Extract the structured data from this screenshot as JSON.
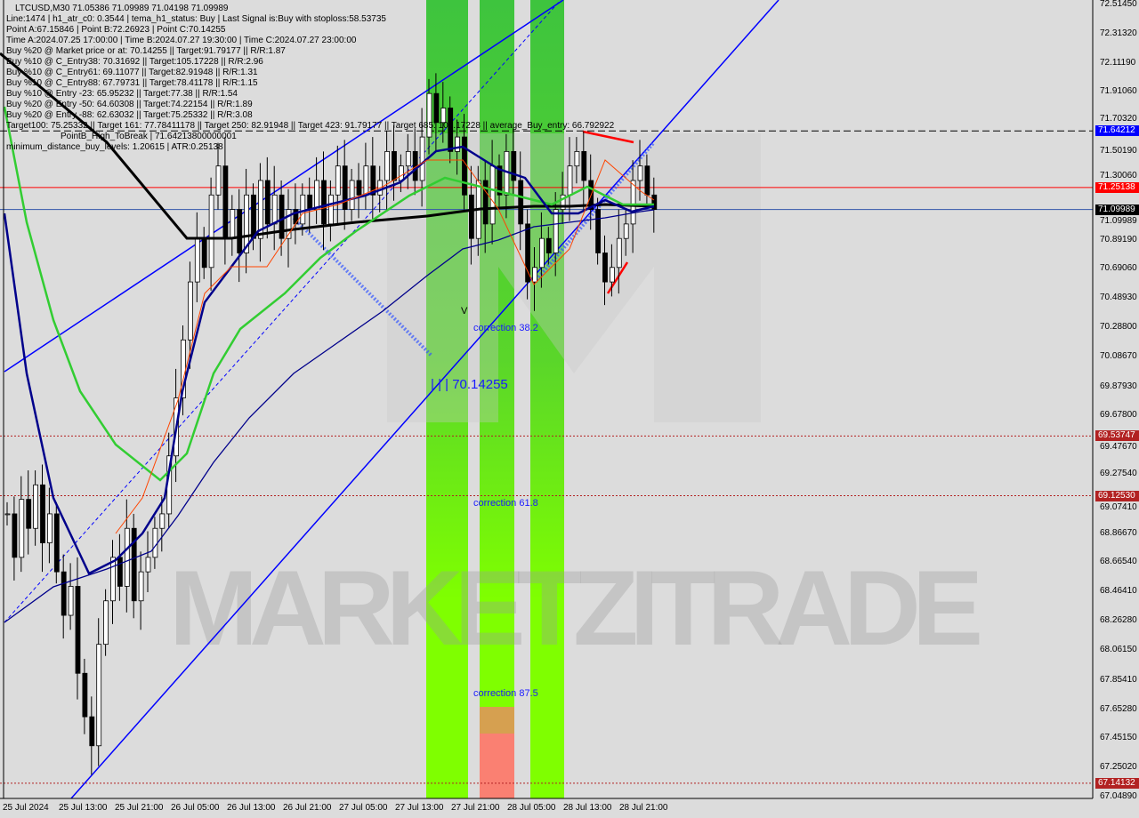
{
  "header": {
    "title": "LTCUSD,M30  71.05386 71.09989 71.04198 71.09989",
    "lines": [
      "Line:1474 | h1_atr_c0: 0.3544 | tema_h1_status: Buy | Last Signal is:Buy with stoploss:58.53735",
      "Point A:67.15846 | Point B:72.26923 | Point C:70.14255",
      "Time A:2024.07.25 17:00:00 | Time B:2024.07.27 19:30:00 | Time C:2024.07.27 23:00:00",
      "Buy %20 @ Market price or at: 70.14255 || Target:91.79177 || R/R:1.87",
      "Buy %10 @ C_Entry38: 70.31692 || Target:105.17228 || R/R:2.96",
      "Buy %10 @ C_Entry61: 69.11077 || Target:82.91948 || R/R:1.31",
      "Buy %10 @ C_Entry88: 67.79731 || Target:78.41178 || R/R:1.15",
      "Buy %10 @ Entry -23: 65.95232 || Target:77.38 || R/R:1.54",
      "Buy %20 @ Entry -50: 64.60308 || Target:74.22154 || R/R:1.89",
      "Buy %20 @ Entry -88: 62.63032 || Target:75.25332 || R/R:3.08",
      "Target100: 75.25332 || Target 161: 77.78411178 || Target 250: 82.91948 || Target 423: 91.79177 || Target 685: 105.17228 || average_Buy_entry: 66.792922",
      "minimum_distance_buy_levels: 1.20615 | ATR:0.25138"
    ],
    "overlay": "PointB_High_ToBreak | 71.64213800000001"
  },
  "annotations": {
    "corr38": "correction 38.2",
    "corr61": "correction 61.8",
    "corr87": "correction 87.5",
    "pointC": "| | | 70.14255",
    "v_mark": "V"
  },
  "watermark": "MARKETZITRADE",
  "colors": {
    "bull_zone": "#3ec43e",
    "bull_zone_light": "#7fff00",
    "bear_zone": "#fa8072",
    "channel": "#0000ff",
    "ma_long": "#000000",
    "ma_green": "#32cd32",
    "ma_navy": "#00008b",
    "sl_line": "#ff0000"
  },
  "chart_data": {
    "type": "candlestick",
    "symbol": "LTCUSD",
    "timeframe": "M30",
    "ylim": [
      67.0489,
      72.5145
    ],
    "y_ticks": [
      "72.51450",
      "72.31320",
      "72.11190",
      "71.91060",
      "71.70320",
      "71.50190",
      "71.30060",
      "71.09989",
      "70.89190",
      "70.69060",
      "70.48930",
      "70.28800",
      "70.08670",
      "69.87930",
      "69.67800",
      "69.47670",
      "69.27540",
      "69.07410",
      "68.86670",
      "68.66540",
      "68.46410",
      "68.26280",
      "68.06150",
      "67.85410",
      "67.65280",
      "67.45150",
      "67.25020",
      "67.04890"
    ],
    "x_ticks": [
      "25 Jul 2024",
      "25 Jul 13:00",
      "25 Jul 21:00",
      "26 Jul 05:00",
      "26 Jul 13:00",
      "26 Jul 21:00",
      "27 Jul 05:00",
      "27 Jul 13:00",
      "27 Jul 21:00",
      "28 Jul 05:00",
      "28 Jul 13:00",
      "28 Jul 21:00"
    ],
    "price_levels": [
      {
        "value": 71.64212,
        "label": "71.64212",
        "color": "#0000ff",
        "style": "dashed"
      },
      {
        "value": 71.25138,
        "label": "71.25138",
        "color": "#ff0000",
        "style": "solid"
      },
      {
        "value": 71.09989,
        "label": "71.09989",
        "color": "#000000",
        "style": "solid"
      },
      {
        "value": 69.53747,
        "label": "69.53747",
        "color": "#b22222",
        "style": "dotted"
      },
      {
        "value": 69.1253,
        "label": "69.12530",
        "color": "#b22222",
        "style": "dotted"
      },
      {
        "value": 67.14132,
        "label": "67.14132",
        "color": "#b22222",
        "style": "dotted"
      }
    ],
    "closes_approx": [
      69.0,
      68.7,
      69.1,
      68.9,
      69.2,
      68.8,
      69.0,
      68.6,
      68.3,
      68.5,
      67.9,
      67.6,
      67.4,
      68.1,
      68.4,
      68.7,
      68.5,
      68.9,
      68.4,
      68.6,
      68.7,
      68.9,
      69.0,
      69.4,
      69.8,
      70.2,
      70.6,
      70.9,
      70.7,
      71.2,
      71.4,
      70.9,
      71.1,
      70.8,
      71.2,
      70.9,
      71.3,
      71.0,
      71.2,
      70.9,
      71.1,
      71.0,
      71.2,
      71.1,
      71.3,
      71.0,
      71.2,
      71.4,
      71.1,
      71.3,
      71.2,
      71.4,
      71.2,
      71.3,
      71.5,
      71.3,
      71.4,
      71.5,
      71.3,
      71.6,
      71.9,
      71.7,
      71.8,
      71.5,
      71.6,
      71.2,
      70.9,
      71.3,
      71.0,
      71.4,
      71.2,
      71.5,
      71.3,
      71.0,
      70.6,
      70.7,
      70.9,
      70.8,
      71.1,
      71.2,
      71.4,
      71.5,
      71.3,
      71.1,
      70.8,
      70.6,
      70.7,
      70.9,
      71.0,
      71.3,
      71.4,
      71.2,
      71.09989
    ]
  }
}
